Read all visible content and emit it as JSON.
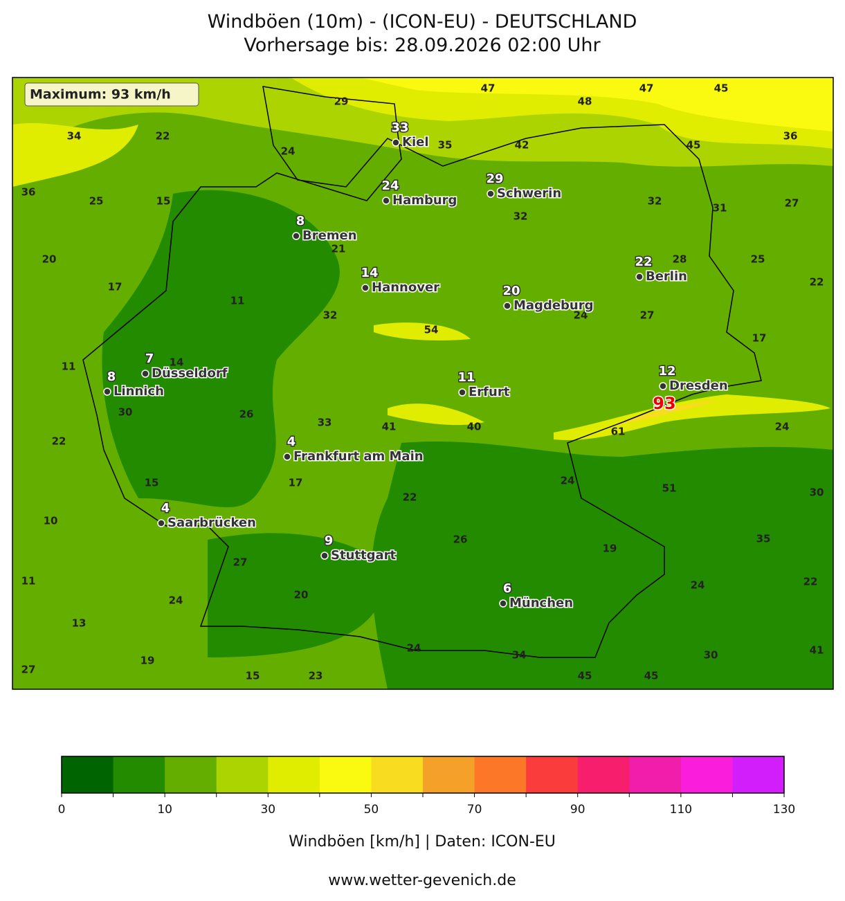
{
  "header": {
    "title": "Windböen (10m) - (ICON-EU) - DEUTSCHLAND",
    "subtitle": "Vorhersage bis: 28.09.2026 02:00 Uhr"
  },
  "map": {
    "maximum_label": "Maximum: 93 km/h",
    "max_marker": 93,
    "cities": [
      {
        "name": "Kiel",
        "value": 33
      },
      {
        "name": "Hamburg",
        "value": 24
      },
      {
        "name": "Schwerin",
        "value": 29
      },
      {
        "name": "Bremen",
        "value": 8
      },
      {
        "name": "Hannover",
        "value": 14
      },
      {
        "name": "Berlin",
        "value": 22
      },
      {
        "name": "Magdeburg",
        "value": 20
      },
      {
        "name": "Düsseldorf",
        "value": 7
      },
      {
        "name": "Linnich",
        "value": 8
      },
      {
        "name": "Erfurt",
        "value": 11
      },
      {
        "name": "Dresden",
        "value": 12
      },
      {
        "name": "Frankfurt am Main",
        "value": 4
      },
      {
        "name": "Saarbrücken",
        "value": 4
      },
      {
        "name": "Stuttgart",
        "value": 9
      },
      {
        "name": "München",
        "value": 6
      }
    ],
    "field_labels": [
      29,
      47,
      48,
      47,
      45,
      34,
      22,
      24,
      35,
      42,
      45,
      36,
      36,
      25,
      15,
      32,
      31,
      27,
      32,
      21,
      28,
      25,
      20,
      17,
      22,
      11,
      32,
      54,
      24,
      27,
      17,
      11,
      14,
      30,
      26,
      33,
      41,
      40,
      61,
      24,
      22,
      24,
      51,
      30,
      15,
      17,
      22,
      10,
      26,
      35,
      19,
      27,
      11,
      22,
      24,
      20,
      24,
      13,
      24,
      34,
      30,
      41,
      19,
      27,
      15,
      23,
      45,
      45
    ]
  },
  "colorbar": {
    "levels": [
      0,
      5,
      10,
      20,
      30,
      40,
      50,
      60,
      70,
      80,
      90,
      100,
      110,
      120,
      130
    ],
    "colors": [
      "#006400",
      "#228b00",
      "#64ae00",
      "#acd400",
      "#e0ec00",
      "#fafa10",
      "#f7dc20",
      "#f5a028",
      "#fc7828",
      "#fa3c3c",
      "#f81e6e",
      "#f01eaa",
      "#fa1edc",
      "#d21efa"
    ],
    "ticks": [
      0,
      10,
      30,
      50,
      70,
      90,
      110,
      130
    ],
    "label": "Windböen [km/h] | Daten: ICON-EU"
  },
  "footer": "www.wetter-gevenich.de"
}
